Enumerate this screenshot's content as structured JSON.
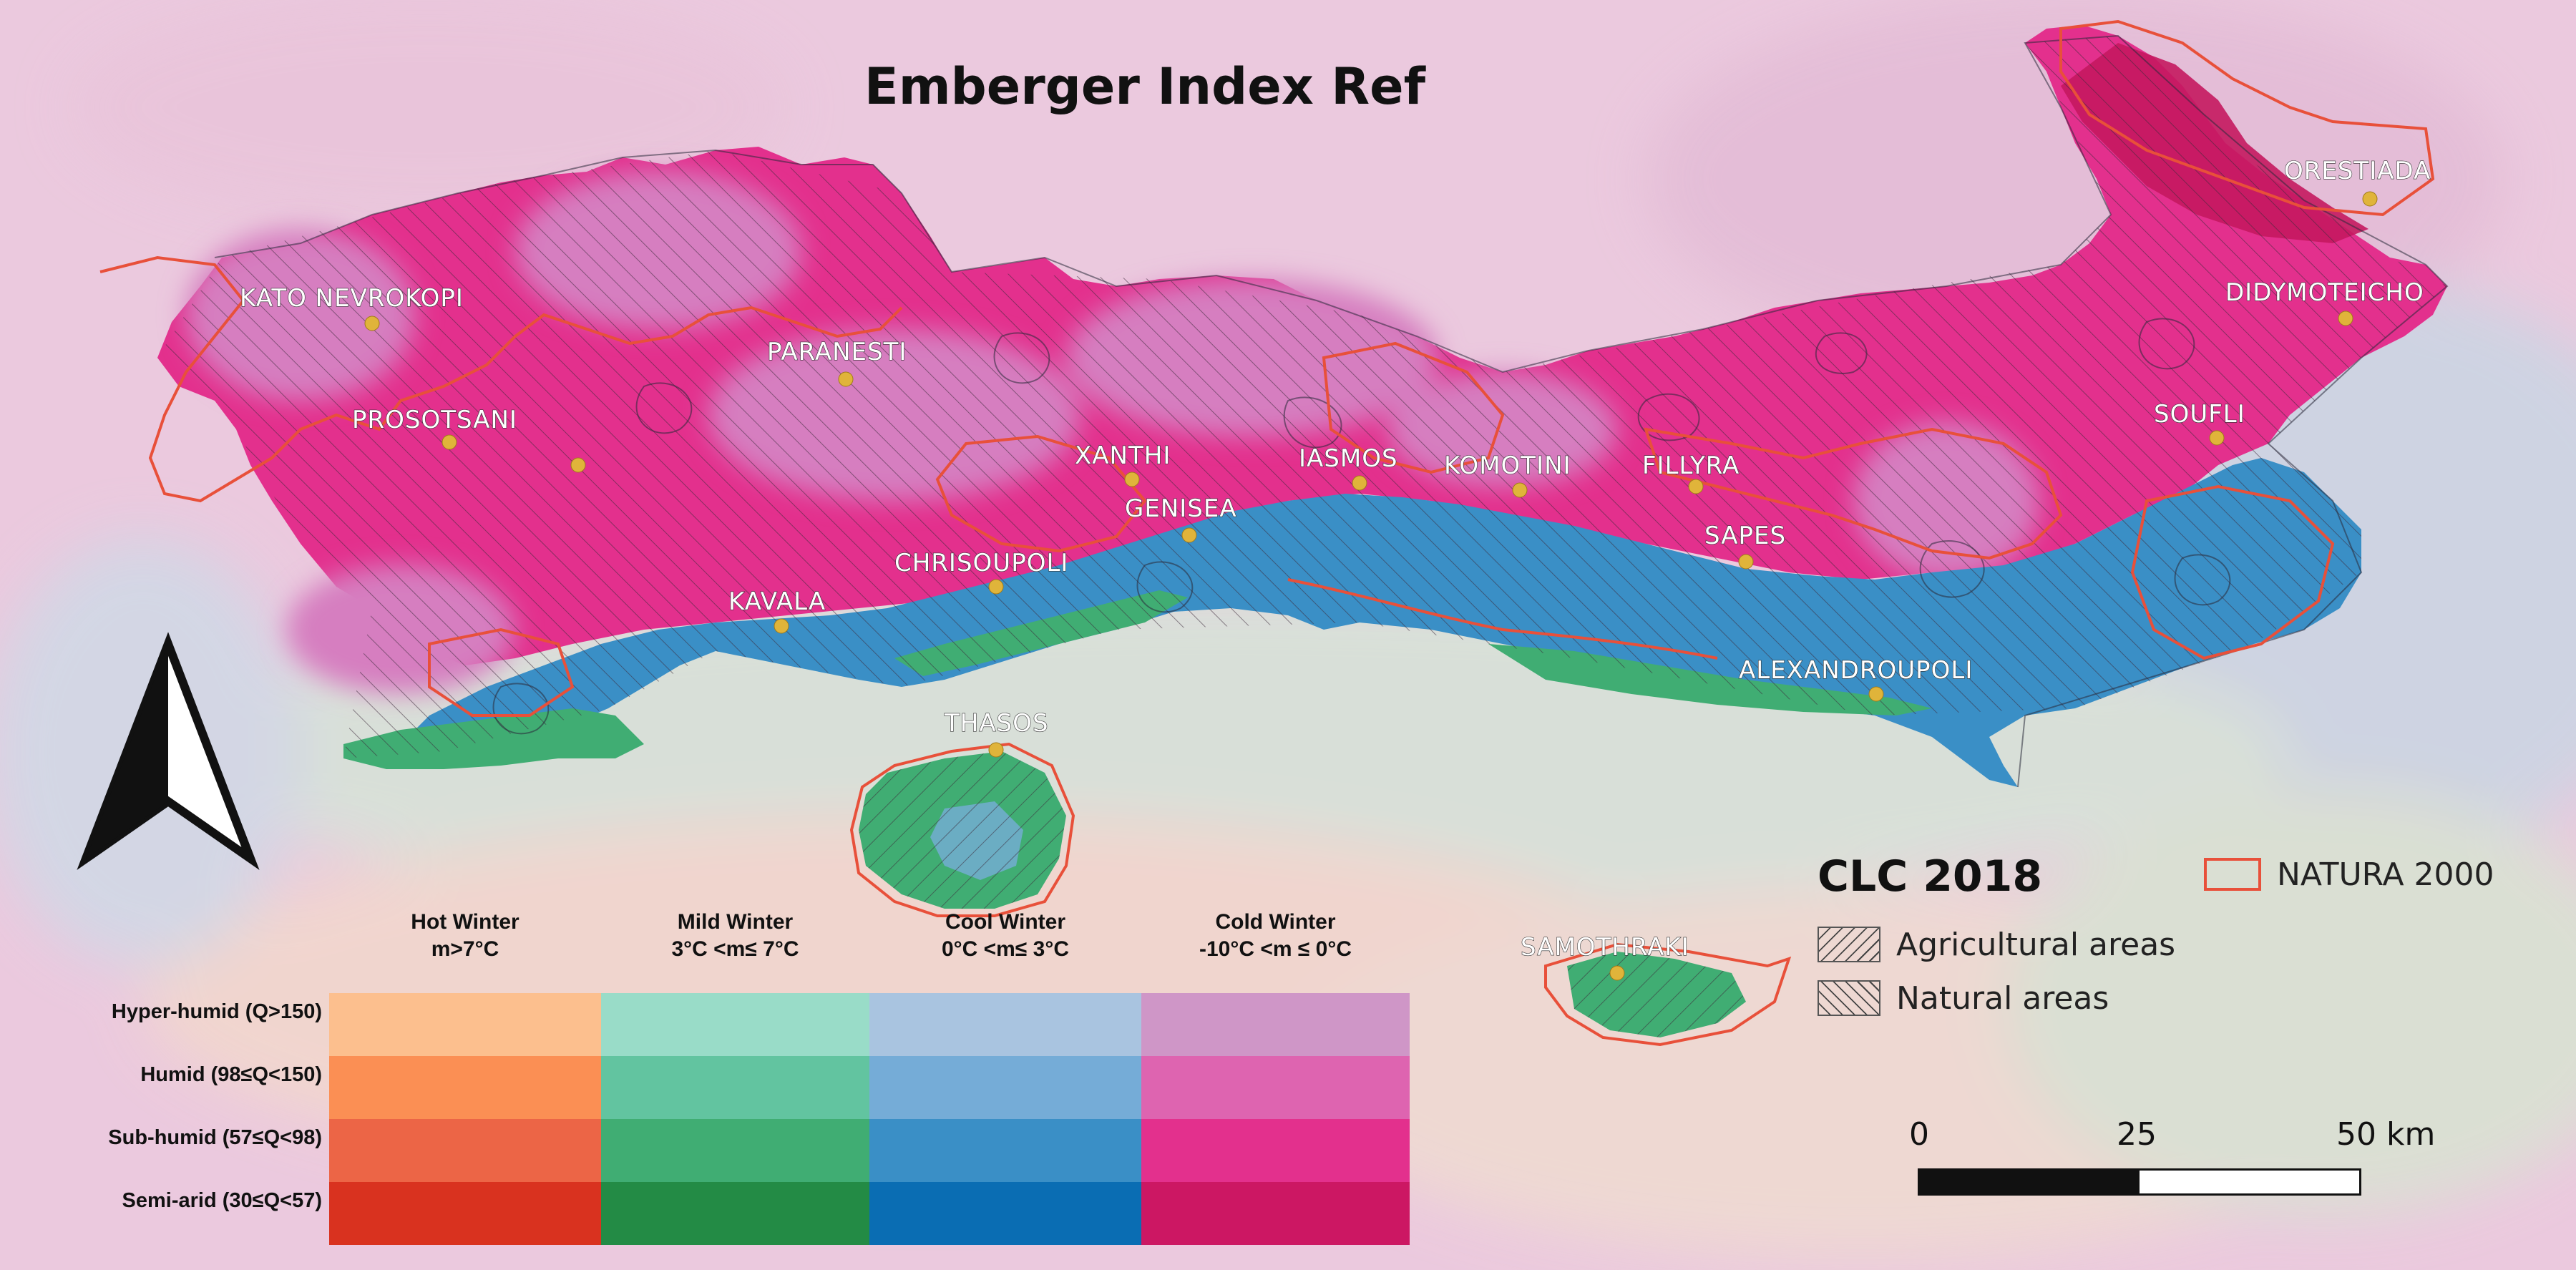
{
  "map": {
    "title": "Emberger Index Ref",
    "towns": [
      {
        "name": "KATO NEVROKOPI"
      },
      {
        "name": "PROSOTSANI"
      },
      {
        "name": "PARANESTI"
      },
      {
        "name": "XANTHI"
      },
      {
        "name": "GENISEA"
      },
      {
        "name": "IASMOS"
      },
      {
        "name": "KOMOTINI"
      },
      {
        "name": "FILLYRA"
      },
      {
        "name": "SAPES"
      },
      {
        "name": "ORESTIADA"
      },
      {
        "name": "DIDYMOTEICHO"
      },
      {
        "name": "SOUFLI"
      },
      {
        "name": "CHRISOUPOLI"
      },
      {
        "name": "KAVALA"
      },
      {
        "name": "ALEXANDROUPOLI"
      },
      {
        "name": "THASOS"
      },
      {
        "name": "SAMOTHRAKI"
      }
    ],
    "town_dot_color": "#e0b43a",
    "natura_color": "#e8503a"
  },
  "climate_legend": {
    "columns": [
      {
        "line1": "Hot Winter",
        "line2": "m>7°C"
      },
      {
        "line1": "Mild Winter",
        "line2": "3°C <m≤ 7°C"
      },
      {
        "line1": "Cool Winter",
        "line2": "0°C <m≤ 3°C"
      },
      {
        "line1": "Cold Winter",
        "line2": "-10°C <m ≤ 0°C"
      }
    ],
    "rows": [
      {
        "label": "Hyper-humid (Q>150)",
        "colors": [
          "#fcbf8e",
          "#99dcc8",
          "#a9c4e0",
          "#cf96c7"
        ]
      },
      {
        "label": "Humid (98≤Q<150)",
        "colors": [
          "#fb8f54",
          "#62c4a0",
          "#75acd7",
          "#de64b0"
        ]
      },
      {
        "label": "Sub-humid (57≤Q<98)",
        "colors": [
          "#ec6546",
          "#40ad73",
          "#3a8fc6",
          "#e3308d"
        ]
      },
      {
        "label": "Semi-arid (30≤Q<57)",
        "colors": [
          "#d9321f",
          "#238b45",
          "#0a6db3",
          "#cc1763"
        ]
      }
    ]
  },
  "clc_legend": {
    "title": "CLC 2018",
    "agricultural": "Agricultural areas",
    "natural": "Natural areas",
    "natura": "NATURA 2000"
  },
  "scale_bar": {
    "ticks": [
      "0",
      "25",
      "50 km"
    ]
  },
  "colors": {
    "background_pink": "#ebc8dd",
    "sea_pale": "#d6e2dc",
    "cold_subhumid": "#e3308d",
    "cold_humid": "#cf7ab8",
    "cool_subhumid": "#3a8fc6",
    "mild_subhumid": "#40ad73"
  }
}
